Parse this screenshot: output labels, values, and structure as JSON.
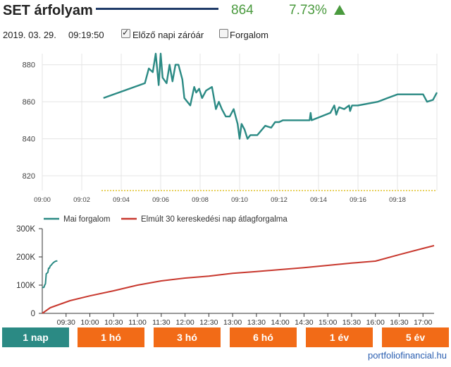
{
  "header": {
    "stock_name": "SET árfolyam",
    "price": "864",
    "change": "7.73%",
    "change_color": "#4a9a3e",
    "title_line_color": "#1f3a68",
    "arrow_icon": "triangle-up-icon"
  },
  "subheader": {
    "date": "2019. 03. 29.",
    "time": "09:19:50",
    "prev_close_label": "Előző napi záróár",
    "prev_close_checked": true,
    "volume_label": "Forgalom",
    "volume_checked": false
  },
  "chart_data": [
    {
      "type": "line",
      "x_ticks": [
        "09:00",
        "09:02",
        "09:04",
        "09:06",
        "09:08",
        "09:10",
        "09:12",
        "09:14",
        "09:16",
        "09:18"
      ],
      "y_ticks": [
        "820",
        "840",
        "860",
        "880"
      ],
      "ylim": [
        812,
        886
      ],
      "xlim_minutes": [
        0,
        20
      ],
      "grid": true,
      "series": [
        {
          "color": "#2b8a84",
          "x_minutes": [
            3.1,
            5.2,
            5.4,
            5.6,
            5.75,
            5.9,
            6.0,
            6.1,
            6.3,
            6.45,
            6.6,
            6.75,
            6.9,
            7.1,
            7.2,
            7.35,
            7.5,
            7.7,
            7.8,
            7.95,
            8.1,
            8.3,
            8.6,
            8.8,
            8.95,
            9.1,
            9.3,
            9.5,
            9.7,
            9.9,
            10.0,
            10.1,
            10.25,
            10.4,
            10.55,
            10.7,
            10.9,
            11.3,
            11.6,
            11.8,
            12.0,
            12.2,
            12.5,
            12.8,
            13.2,
            13.55,
            13.6,
            13.65,
            14.6,
            14.8,
            14.9,
            15.0,
            15.05,
            15.3,
            15.55,
            15.6,
            15.7,
            15.75,
            16.0,
            16.5,
            17.0,
            17.5,
            18.0,
            18.5,
            19.3,
            19.5,
            19.8,
            19.9,
            20.0
          ],
          "values": [
            862,
            870,
            878,
            876,
            886,
            869,
            886,
            873,
            870,
            880,
            871,
            880,
            880,
            872,
            862,
            860,
            858,
            868,
            865,
            867,
            862,
            866,
            868,
            856,
            860,
            856,
            852,
            852,
            856,
            848,
            840,
            848,
            845,
            840,
            842,
            842,
            842,
            847,
            846,
            849,
            849,
            850,
            850,
            850,
            850,
            850,
            854,
            850,
            854,
            858,
            853,
            856,
            857,
            856,
            858,
            855,
            858,
            858,
            858,
            859,
            860,
            862,
            864,
            864,
            864,
            860,
            861,
            863,
            865
          ]
        },
        {
          "color": "#e0c22a",
          "dashed": true,
          "x_minutes": [
            3.0,
            20.0
          ],
          "values": [
            812,
            812
          ]
        }
      ]
    },
    {
      "type": "line",
      "x_ticks": [
        "09:30",
        "10:00",
        "10:30",
        "11:00",
        "11:30",
        "12:00",
        "12:30",
        "13:00",
        "13:30",
        "14:00",
        "14:30",
        "15:00",
        "15:30",
        "16:00",
        "16:30",
        "17:00"
      ],
      "y_ticks": [
        "0",
        "100K",
        "200K",
        "300K"
      ],
      "ylim": [
        0,
        300000
      ],
      "xlim_minutes_from_0900": [
        0,
        494
      ],
      "legend": "top-left",
      "grid": false,
      "series": [
        {
          "name": "Mai forgalom",
          "color": "#2b8a84",
          "x_minutes": [
            0,
            2,
            3,
            4,
            5,
            7,
            8,
            9,
            10,
            11,
            13,
            15,
            17,
            19
          ],
          "values": [
            92000,
            92000,
            100000,
            105000,
            140000,
            145000,
            160000,
            160000,
            168000,
            170000,
            177000,
            182000,
            185000,
            186000
          ]
        },
        {
          "name": "Elmúlt 30 kereskedési nap átlagforgalma",
          "color": "#c8382e",
          "x_minutes": [
            0,
            10,
            20,
            35,
            60,
            90,
            120,
            150,
            180,
            210,
            240,
            270,
            300,
            330,
            360,
            390,
            420,
            450,
            480,
            494
          ],
          "values": [
            0,
            20000,
            30000,
            45000,
            62000,
            80000,
            100000,
            115000,
            125000,
            132000,
            142000,
            148000,
            155000,
            162000,
            170000,
            178000,
            185000,
            208000,
            230000,
            240000
          ]
        }
      ]
    }
  ],
  "tabs": [
    {
      "label": "1 nap",
      "active": true
    },
    {
      "label": "1 hó",
      "active": false
    },
    {
      "label": "3 hó",
      "active": false
    },
    {
      "label": "6 hó",
      "active": false
    },
    {
      "label": "1 év",
      "active": false
    },
    {
      "label": "5 év",
      "active": false
    }
  ],
  "footer": {
    "source": "portfoliofinancial.hu"
  }
}
